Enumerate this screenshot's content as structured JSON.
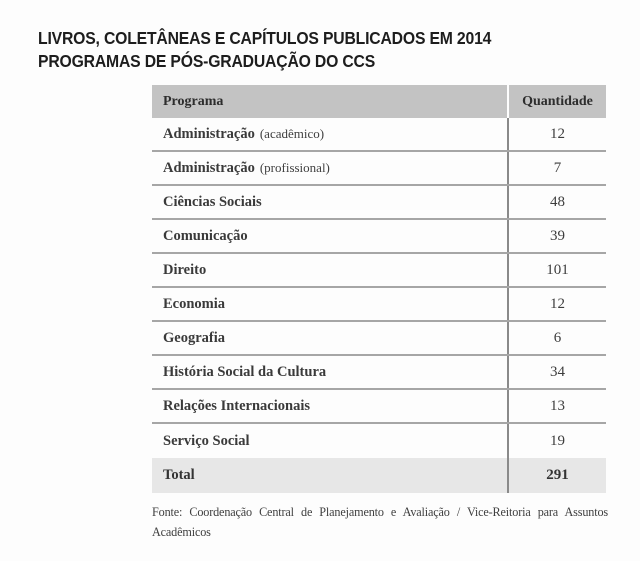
{
  "title": {
    "line1": "LIVROS, COLETÂNEAS E CAPÍTULOS PUBLICADOS EM 2014",
    "line2": "PROGRAMAS DE PÓS-GRADUAÇÃO DO CCS"
  },
  "table": {
    "columns": {
      "program": "Programa",
      "quantity": "Quantidade"
    },
    "rows": [
      {
        "program": "Administração",
        "note": "(acadêmico)",
        "quantity": "12"
      },
      {
        "program": "Administração",
        "note": "(profissional)",
        "quantity": "7"
      },
      {
        "program": "Ciências Sociais",
        "note": "",
        "quantity": "48"
      },
      {
        "program": "Comunicação",
        "note": "",
        "quantity": "39"
      },
      {
        "program": "Direito",
        "note": "",
        "quantity": "101"
      },
      {
        "program": "Economia",
        "note": "",
        "quantity": "12"
      },
      {
        "program": "Geografia",
        "note": "",
        "quantity": "6"
      },
      {
        "program": "História Social da Cultura",
        "note": "",
        "quantity": "34"
      },
      {
        "program": "Relações Internacionais",
        "note": "",
        "quantity": "13"
      },
      {
        "program": "Serviço Social",
        "note": "",
        "quantity": "19"
      }
    ],
    "total": {
      "label": "Total",
      "quantity": "291"
    }
  },
  "source": "Fonte: Coordenação Central de Planejamento e Avaliação / Vice-Reitoria para Assuntos Acadêmicos",
  "colors": {
    "header_bg": "#c3c3c3",
    "total_row_bg": "#e7e7e7",
    "row_separator": "#a6a6a6",
    "column_divider": "#8a8a8a",
    "title_text": "#1d1d1d",
    "body_text": "#3a3a3a",
    "page_bg": "#fdfdfd"
  },
  "chart_data": {
    "type": "table",
    "title": "LIVROS, COLETÂNEAS E CAPÍTULOS PUBLICADOS EM 2014 — PROGRAMAS DE PÓS-GRADUAÇÃO DO CCS",
    "columns": [
      "Programa",
      "Quantidade"
    ],
    "categories": [
      "Administração (acadêmico)",
      "Administração (profissional)",
      "Ciências Sociais",
      "Comunicação",
      "Direito",
      "Economia",
      "Geografia",
      "História Social da Cultura",
      "Relações Internacionais",
      "Serviço Social"
    ],
    "values": [
      12,
      7,
      48,
      39,
      101,
      12,
      6,
      34,
      13,
      19
    ],
    "total": 291,
    "source": "Fonte: Coordenação Central de Planejamento e Avaliação / Vice-Reitoria para Assuntos Acadêmicos"
  }
}
